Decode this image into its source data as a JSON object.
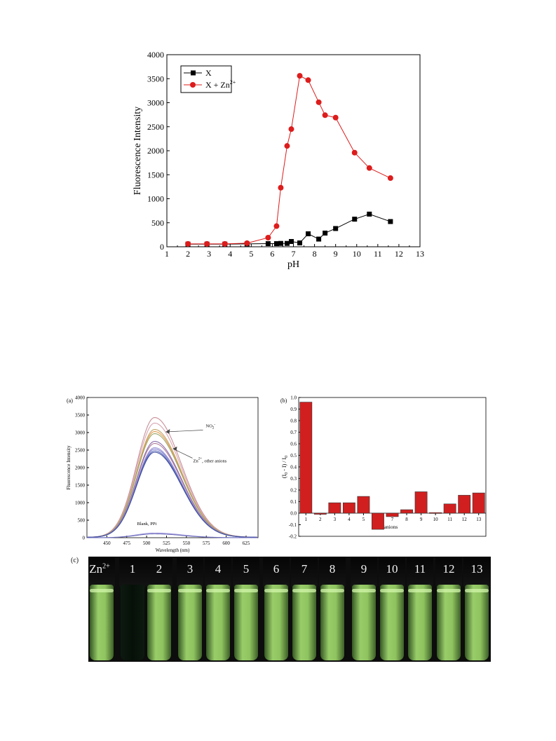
{
  "chart_data": [
    {
      "type": "line",
      "panel": "",
      "title": "",
      "xlabel": "pH",
      "ylabel": "Fluorescence Intensity",
      "xlim": [
        1,
        13
      ],
      "ylim": [
        0,
        4000
      ],
      "xticks": [
        1,
        2,
        3,
        4,
        5,
        6,
        7,
        8,
        9,
        10,
        11,
        12,
        13
      ],
      "yticks": [
        0,
        500,
        1000,
        1500,
        2000,
        2500,
        3000,
        3500,
        4000
      ],
      "legend_position": "top-left",
      "series": [
        {
          "name": "X",
          "color": "#000000",
          "marker": "square",
          "x": [
            2.0,
            2.9,
            3.75,
            4.8,
            5.8,
            6.2,
            6.4,
            6.7,
            6.9,
            7.3,
            7.7,
            8.2,
            8.5,
            9.0,
            9.9,
            10.6,
            11.6
          ],
          "y": [
            55,
            55,
            55,
            60,
            65,
            65,
            70,
            70,
            110,
            80,
            270,
            160,
            285,
            380,
            575,
            680,
            525
          ]
        },
        {
          "name": "X + Zn",
          "name_sup": "2+",
          "color": "#dd1c1c",
          "marker": "circle",
          "x": [
            2.0,
            2.9,
            3.75,
            4.8,
            5.8,
            6.2,
            6.4,
            6.7,
            6.9,
            7.3,
            7.7,
            8.2,
            8.5,
            9.0,
            9.9,
            10.6,
            11.6
          ],
          "y": [
            60,
            60,
            60,
            75,
            190,
            430,
            1230,
            2100,
            2450,
            3560,
            3470,
            3010,
            2740,
            2690,
            1960,
            1640,
            1430
          ]
        }
      ]
    },
    {
      "type": "line",
      "panel": "(a)",
      "title": "",
      "xlabel": "Wavelength (nm)",
      "ylabel": "Fluorescence Intensity",
      "xlim": [
        425,
        640
      ],
      "ylim": [
        0,
        4000
      ],
      "xticks": [
        450,
        475,
        500,
        525,
        550,
        575,
        600,
        625
      ],
      "yticks": [
        0,
        500,
        1000,
        1500,
        2000,
        2500,
        3000,
        3500,
        4000
      ],
      "peak_nm": 510,
      "annotations": [
        {
          "text": "NO",
          "sub": "2",
          "sup": "-",
          "wl": 555,
          "val": 3150
        },
        {
          "text": "Zn",
          "sup": "2+",
          "suffix": ", other anions",
          "wl": 555,
          "val": 2150
        },
        {
          "text": "Blank, PPi",
          "wl": 488,
          "val": 360
        }
      ],
      "series": [
        {
          "color": "#c8909a",
          "peak": 3420
        },
        {
          "color": "#d8a6b3",
          "peak": 3260
        },
        {
          "color": "#c2a36a",
          "peak": 3080
        },
        {
          "color": "#e49c4f",
          "peak": 3020
        },
        {
          "color": "#9aaa6c",
          "peak": 2960
        },
        {
          "color": "#8a6da8",
          "peak": 2740
        },
        {
          "color": "#b07c9b",
          "peak": 2680
        },
        {
          "color": "#9b95d8",
          "peak": 2560
        },
        {
          "color": "#7f7fd0",
          "peak": 2520
        },
        {
          "color": "#5a68b8",
          "peak": 2470
        },
        {
          "color": "#3e4d9e",
          "peak": 2430
        },
        {
          "color": "#a69ee0",
          "peak": 135
        },
        {
          "color": "#6b6bb8",
          "peak": 110
        }
      ]
    },
    {
      "type": "bar",
      "panel": "(b)",
      "title": "",
      "xlabel": "anions",
      "ylabel": "(I",
      "ylabel_sub0": "0",
      "ylabel_mid": " - I) / I",
      "ylabel_sub1": "0",
      "ylim": [
        -0.2,
        1.0
      ],
      "yticks": [
        -0.2,
        -0.1,
        0.0,
        0.1,
        0.2,
        0.3,
        0.4,
        0.5,
        0.6,
        0.7,
        0.8,
        0.9,
        1.0
      ],
      "categories": [
        "1",
        "2",
        "3",
        "4",
        "5",
        "6",
        "7",
        "8",
        "9",
        "10",
        "11",
        "12",
        "13"
      ],
      "values": [
        0.96,
        -0.01,
        0.09,
        0.09,
        0.145,
        -0.14,
        -0.03,
        0.03,
        0.185,
        0.005,
        0.08,
        0.155,
        0.175
      ],
      "bar_color": "#d11f1f"
    }
  ],
  "photo": {
    "panel": "(c)",
    "labels": [
      "Zn2+",
      "1",
      "2",
      "3",
      "4",
      "5",
      "6",
      "7",
      "8",
      "9",
      "10",
      "11",
      "12",
      "13"
    ],
    "label_zn": "Zn",
    "label_zn_sup": "2+",
    "dark_index": 1
  }
}
